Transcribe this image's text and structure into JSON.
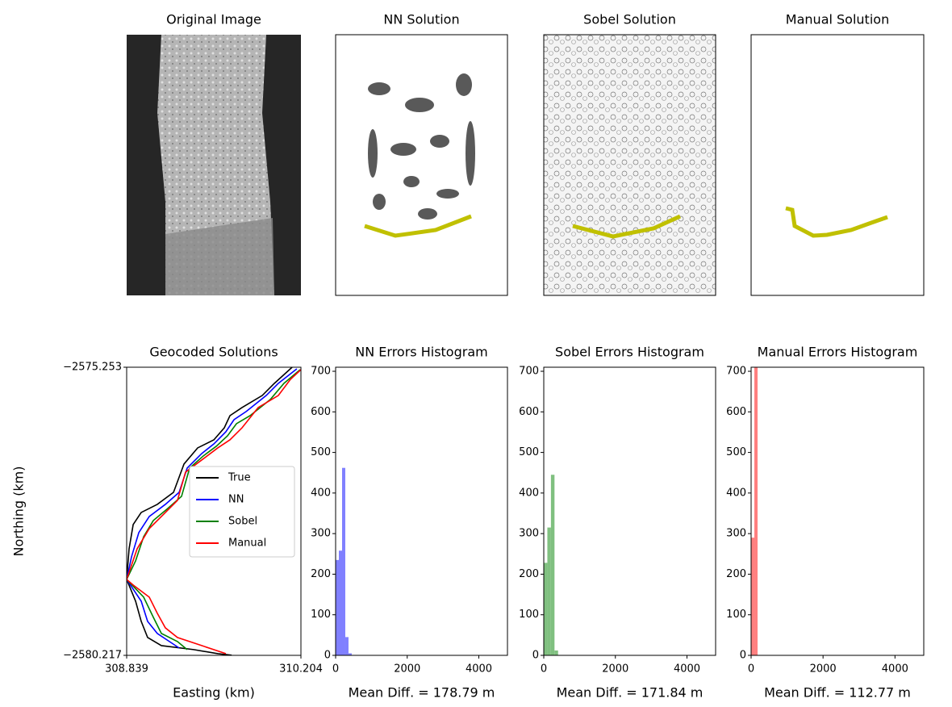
{
  "chart_data": [
    {
      "type": "image",
      "title": "Original Image"
    },
    {
      "type": "image",
      "title": "NN Solution"
    },
    {
      "type": "image",
      "title": "Sobel Solution"
    },
    {
      "type": "image",
      "title": "Manual Solution"
    },
    {
      "type": "line",
      "title": "Geocoded Solutions",
      "x_label": "Easting (km)",
      "y_label": "Northing (km)",
      "xlim": [
        308.839,
        310.204
      ],
      "ylim": [
        -2580.217,
        -2575.253
      ],
      "xticks": [
        308.839,
        310.204
      ],
      "yticks": [
        {
          "value": -2580.217,
          "label": "−2580.217"
        },
        {
          "value": -2575.253,
          "label": "−2575.253"
        }
      ],
      "legend": "center right",
      "series": [
        {
          "name": "True",
          "color": "#000000",
          "x": [
            310.135,
            309.996,
            309.901,
            309.743,
            309.648,
            309.604,
            309.522,
            309.395,
            309.288,
            309.206,
            309.079,
            308.953,
            308.89,
            308.858,
            308.839,
            308.909,
            308.953,
            309.003,
            309.111,
            309.364,
            309.553,
            309.661
          ],
          "y": [
            -2575.253,
            -2575.531,
            -2575.74,
            -2575.948,
            -2576.087,
            -2576.296,
            -2576.504,
            -2576.643,
            -2576.921,
            -2577.408,
            -2577.616,
            -2577.755,
            -2577.964,
            -2578.381,
            -2578.909,
            -2579.284,
            -2579.632,
            -2579.909,
            -2580.049,
            -2580.118,
            -2580.188,
            -2580.215
          ]
        },
        {
          "name": "NN",
          "color": "#0000ff",
          "x": [
            310.172,
            310.027,
            309.932,
            309.774,
            309.68,
            309.616,
            309.522,
            309.427,
            309.313,
            309.25,
            309.142,
            309.016,
            308.934,
            308.877,
            308.839,
            308.953,
            309.003,
            309.079,
            309.174,
            309.25
          ],
          "y": [
            -2575.281,
            -2575.531,
            -2575.74,
            -2576.018,
            -2576.157,
            -2576.365,
            -2576.574,
            -2576.74,
            -2576.991,
            -2577.408,
            -2577.616,
            -2577.825,
            -2578.103,
            -2578.52,
            -2578.909,
            -2579.284,
            -2579.632,
            -2579.84,
            -2579.979,
            -2580.09
          ]
        },
        {
          "name": "Sobel",
          "color": "#008000",
          "x": [
            310.198,
            310.071,
            309.964,
            309.806,
            309.699,
            309.629,
            309.541,
            309.439,
            309.332,
            309.269,
            309.161,
            309.048,
            308.972,
            308.909,
            308.839,
            308.972,
            309.048,
            309.111,
            309.237,
            309.313
          ],
          "y": [
            -2575.295,
            -2575.531,
            -2575.809,
            -2576.087,
            -2576.226,
            -2576.435,
            -2576.615,
            -2576.782,
            -2576.991,
            -2577.477,
            -2577.686,
            -2577.894,
            -2578.172,
            -2578.589,
            -2578.909,
            -2579.214,
            -2579.562,
            -2579.84,
            -2579.979,
            -2580.118
          ]
        },
        {
          "name": "Manual",
          "color": "#ff0000",
          "x": [
            310.204,
            310.122,
            310.027,
            309.869,
            309.743,
            309.648,
            309.553,
            309.427,
            309.3,
            309.237,
            309.111,
            309.016,
            308.921,
            308.839,
            308.89,
            309.016,
            309.079,
            309.142,
            309.237,
            309.427,
            309.616
          ],
          "y": [
            -2575.295,
            -2575.462,
            -2575.74,
            -2575.948,
            -2576.296,
            -2576.504,
            -2576.643,
            -2576.851,
            -2577.06,
            -2577.546,
            -2577.825,
            -2578.033,
            -2578.381,
            -2578.909,
            -2579.006,
            -2579.214,
            -2579.492,
            -2579.743,
            -2579.909,
            -2580.049,
            -2580.188
          ]
        }
      ]
    },
    {
      "type": "histogram",
      "title": "NN Errors Histogram",
      "x_label": "Mean Diff. = 178.79 m",
      "color": "#8080ff",
      "bins": [
        0,
        90,
        180,
        270,
        360,
        450
      ],
      "values": [
        235,
        258,
        462,
        45,
        5
      ],
      "xlim": [
        0,
        4800
      ],
      "ylim": [
        0,
        710
      ],
      "xticks": [
        0,
        2000,
        4000
      ],
      "yticks": [
        0,
        100,
        200,
        300,
        400,
        500,
        600,
        700
      ]
    },
    {
      "type": "histogram",
      "title": "Sobel Errors Histogram",
      "x_label": "Mean Diff. = 171.84 m",
      "color": "#80c080",
      "bins": [
        0,
        100,
        200,
        300,
        400
      ],
      "values": [
        228,
        315,
        445,
        12
      ],
      "xlim": [
        0,
        4800
      ],
      "ylim": [
        0,
        710
      ],
      "xticks": [
        0,
        2000,
        4000
      ],
      "yticks": [
        0,
        100,
        200,
        300,
        400,
        500,
        600,
        700
      ]
    },
    {
      "type": "histogram",
      "title": "Manual Errors Histogram",
      "x_label": "Mean Diff. = 112.77 m",
      "color": "#ff8080",
      "bins": [
        0,
        90,
        180
      ],
      "values": [
        290,
        710
      ],
      "xlim": [
        0,
        4800
      ],
      "ylim": [
        0,
        710
      ],
      "xticks": [
        0,
        2000,
        4000
      ],
      "yticks": [
        0,
        100,
        200,
        300,
        400,
        500,
        600,
        700
      ]
    }
  ]
}
